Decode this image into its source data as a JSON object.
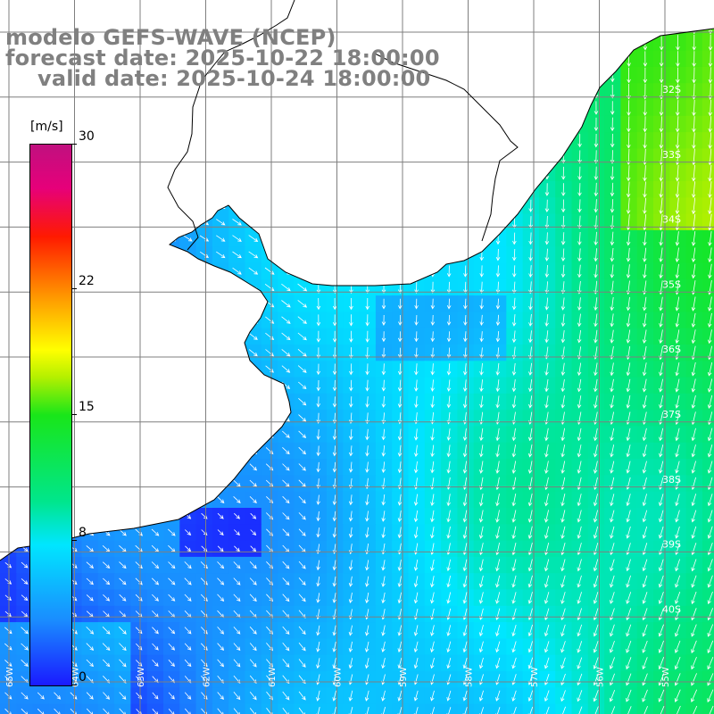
{
  "title": {
    "line1": "modelo GEFS-WAVE (NCEP)",
    "line2": "forecast date: 2025-10-22 18:00:00",
    "line3": "valid date: 2025-10-24 18:00:00"
  },
  "colorbar": {
    "unit": "[m/s]",
    "ticks": [
      "30",
      "22",
      "15",
      "8",
      "0"
    ],
    "tick_values": [
      30,
      22,
      15,
      8,
      0
    ],
    "colors": [
      "#1a1aff",
      "#1a8cff",
      "#00e6ff",
      "#00e68c",
      "#19e619",
      "#b4f000",
      "#ffff00",
      "#ff9600",
      "#ff1a00",
      "#e6007a",
      "#c0107f"
    ]
  },
  "map": {
    "lat_labels": [
      "32S",
      "33S",
      "34S",
      "35S",
      "36S",
      "37S",
      "38S",
      "39S",
      "40S"
    ],
    "lon_labels": [
      "65W",
      "64W",
      "63W",
      "62W",
      "61W",
      "60W",
      "59W",
      "58W",
      "57W",
      "56W",
      "55W"
    ],
    "land_color": "#ffffff",
    "grid_color": "#7f7f7f",
    "arrow_color": "#ffffff"
  }
}
